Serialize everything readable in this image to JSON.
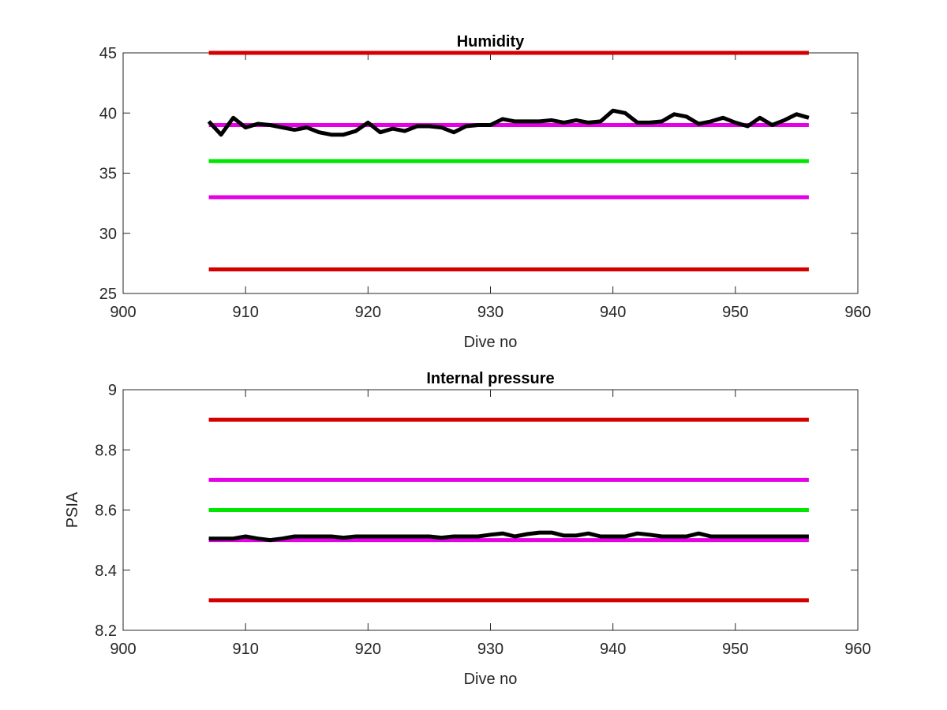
{
  "chart_data": [
    {
      "type": "line",
      "title": "Humidity",
      "xlabel": "Dive no",
      "ylabel": "",
      "xlim": [
        900,
        960
      ],
      "ylim": [
        25,
        45
      ],
      "xticks": [
        900,
        910,
        920,
        930,
        940,
        950,
        960
      ],
      "yticks": [
        25,
        30,
        35,
        40,
        45
      ],
      "grid": false,
      "series": [
        {
          "color": "#000000",
          "x": [
            907,
            908,
            909,
            910,
            911,
            912,
            913,
            914,
            915,
            916,
            917,
            918,
            919,
            920,
            921,
            922,
            923,
            924,
            925,
            926,
            927,
            928,
            929,
            930,
            931,
            932,
            933,
            934,
            935,
            936,
            937,
            938,
            939,
            940,
            941,
            942,
            943,
            944,
            945,
            946,
            947,
            948,
            949,
            950,
            951,
            952,
            953,
            954,
            955,
            956
          ],
          "y": [
            39.3,
            38.2,
            39.6,
            38.8,
            39.1,
            39.0,
            38.8,
            38.6,
            38.8,
            38.4,
            38.2,
            38.2,
            38.5,
            39.2,
            38.4,
            38.7,
            38.5,
            38.9,
            38.9,
            38.8,
            38.4,
            38.9,
            39.0,
            39.0,
            39.5,
            39.3,
            39.3,
            39.3,
            39.4,
            39.2,
            39.4,
            39.2,
            39.3,
            40.2,
            40.0,
            39.2,
            39.2,
            39.3,
            39.9,
            39.7,
            39.1,
            39.3,
            39.6,
            39.2,
            38.9,
            39.6,
            39.0,
            39.4,
            39.9,
            39.6
          ]
        },
        {
          "color": "#d40000",
          "x": [
            907,
            956
          ],
          "y": [
            45,
            45
          ]
        },
        {
          "color": "#e600e6",
          "x": [
            907,
            956
          ],
          "y": [
            39,
            39
          ]
        },
        {
          "color": "#00e600",
          "x": [
            907,
            956
          ],
          "y": [
            36,
            36
          ]
        },
        {
          "color": "#e600e6",
          "x": [
            907,
            956
          ],
          "y": [
            33,
            33
          ]
        },
        {
          "color": "#d40000",
          "x": [
            907,
            956
          ],
          "y": [
            27,
            27
          ]
        }
      ]
    },
    {
      "type": "line",
      "title": "Internal pressure",
      "xlabel": "Dive no",
      "ylabel": "PSIA",
      "xlim": [
        900,
        960
      ],
      "ylim": [
        8.2,
        9
      ],
      "xticks": [
        900,
        910,
        920,
        930,
        940,
        950,
        960
      ],
      "yticks": [
        8.2,
        8.4,
        8.6,
        8.8,
        9
      ],
      "grid": false,
      "series": [
        {
          "color": "#000000",
          "x": [
            907,
            908,
            909,
            910,
            911,
            912,
            913,
            914,
            915,
            916,
            917,
            918,
            919,
            920,
            921,
            922,
            923,
            924,
            925,
            926,
            927,
            928,
            929,
            930,
            931,
            932,
            933,
            934,
            935,
            936,
            937,
            938,
            939,
            940,
            941,
            942,
            943,
            944,
            945,
            946,
            947,
            948,
            949,
            950,
            951,
            952,
            953,
            954,
            955,
            956
          ],
          "y": [
            8.505,
            8.505,
            8.505,
            8.512,
            8.505,
            8.5,
            8.505,
            8.512,
            8.512,
            8.512,
            8.512,
            8.508,
            8.512,
            8.512,
            8.512,
            8.512,
            8.512,
            8.512,
            8.512,
            8.508,
            8.512,
            8.512,
            8.512,
            8.518,
            8.522,
            8.512,
            8.52,
            8.525,
            8.525,
            8.515,
            8.515,
            8.522,
            8.512,
            8.512,
            8.512,
            8.522,
            8.518,
            8.512,
            8.512,
            8.512,
            8.522,
            8.512,
            8.512,
            8.512,
            8.512,
            8.512,
            8.512,
            8.512,
            8.512,
            8.512
          ]
        },
        {
          "color": "#d40000",
          "x": [
            907,
            956
          ],
          "y": [
            8.9,
            8.9
          ]
        },
        {
          "color": "#e600e6",
          "x": [
            907,
            956
          ],
          "y": [
            8.7,
            8.7
          ]
        },
        {
          "color": "#00e600",
          "x": [
            907,
            956
          ],
          "y": [
            8.6,
            8.6
          ]
        },
        {
          "color": "#e600e6",
          "x": [
            907,
            956
          ],
          "y": [
            8.5,
            8.5
          ]
        },
        {
          "color": "#d40000",
          "x": [
            907,
            956
          ],
          "y": [
            8.3,
            8.3
          ]
        }
      ]
    }
  ]
}
